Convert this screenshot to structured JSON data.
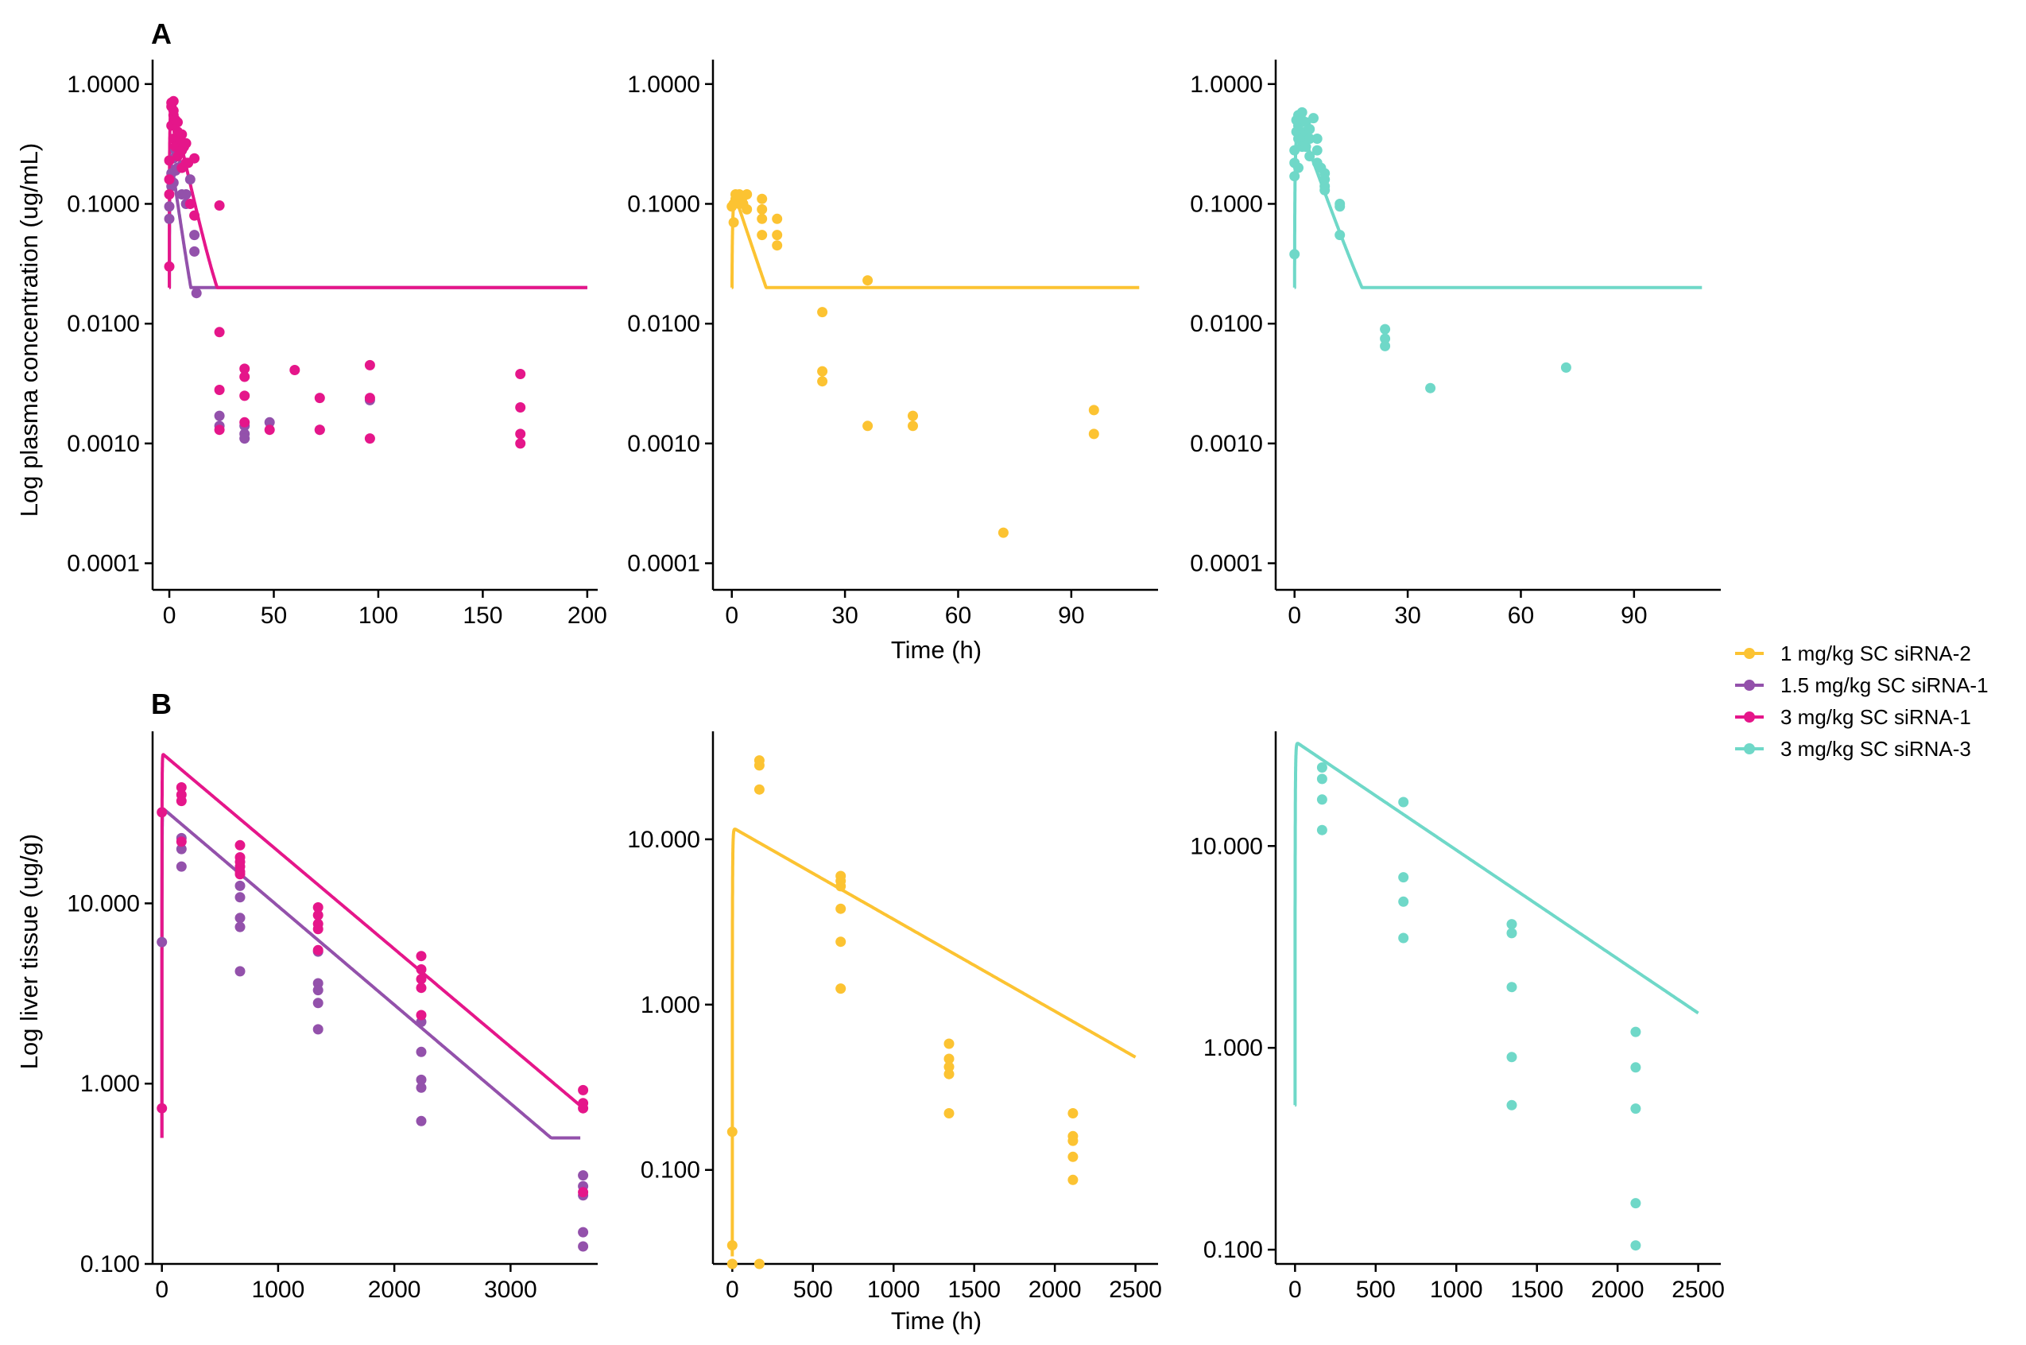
{
  "figure": {
    "legend": [
      {
        "key": "s1",
        "label": "1 mg/kg SC siRNA-2",
        "color": "#FCC332"
      },
      {
        "key": "s2",
        "label": "1.5 mg/kg SC siRNA-1",
        "color": "#9351AB"
      },
      {
        "key": "s3",
        "label": "3 mg/kg SC siRNA-1",
        "color": "#E5168A"
      },
      {
        "key": "s4",
        "label": "3 mg/kg SC siRNA-3",
        "color": "#6FD8C8"
      }
    ],
    "row_labels": [
      "A",
      "B"
    ],
    "x_titles": [
      "Time (h)",
      "Time (h)"
    ],
    "y_titles": [
      "Log plasma concentration (ug/mL)",
      "Log liver tissue (ug/g)"
    ]
  },
  "chart_data": [
    {
      "id": "A1",
      "type": "scatter+line",
      "row": "A",
      "yscale": "log",
      "xlim": [
        -8,
        205
      ],
      "ylim": [
        6e-05,
        1.6
      ],
      "xticks": [
        0,
        50,
        100,
        150,
        200
      ],
      "yticks": [
        0.0001,
        0.001,
        0.01,
        0.1,
        1
      ],
      "ytick_labels": [
        "0.0001",
        "0.0010",
        "0.0100",
        "0.1000",
        "1.0000"
      ],
      "xlabel": "",
      "ylabel": "Log plasma concentration (ug/mL)",
      "lines": [
        {
          "series": "s2",
          "model": "plasma",
          "params": {
            "tmax": 200,
            "t0": 0.02,
            "ka": 2.5,
            "A": 0.3,
            "k1": 0.28,
            "B": 0.0033,
            "k2": 0.0021,
            "tlag": 0
          }
        },
        {
          "series": "s3",
          "model": "plasma",
          "params": {
            "tmax": 200,
            "t0": 0.02,
            "ka": 2.5,
            "A": 0.85,
            "k1": 0.18,
            "B": 0.0065,
            "k2": 0.002,
            "tlag": 0
          }
        }
      ],
      "points": [
        {
          "series": "s2",
          "x": [
            0,
            0,
            1,
            1,
            2,
            2,
            3,
            3,
            4,
            4,
            6,
            6,
            8,
            8,
            10,
            12,
            12,
            13,
            24,
            24,
            36,
            36,
            36,
            48,
            72,
            96
          ],
          "y": [
            0.075,
            0.095,
            0.14,
            0.18,
            0.15,
            0.24,
            0.19,
            0.28,
            0.2,
            0.3,
            0.12,
            0.21,
            0.1,
            0.12,
            0.16,
            0.055,
            0.04,
            0.018,
            0.0017,
            0.0014,
            0.0014,
            0.0012,
            0.0011,
            0.0015,
            0.0013,
            0.0023
          ]
        },
        {
          "series": "s3",
          "x": [
            0,
            0,
            0,
            0,
            1,
            1,
            1,
            2,
            2,
            2,
            2,
            3,
            3,
            4,
            4,
            4,
            5,
            6,
            6,
            6,
            7,
            8,
            8,
            9,
            10,
            12,
            12,
            24,
            24,
            24,
            24,
            36,
            36,
            36,
            36,
            48,
            60,
            72,
            72,
            96,
            96,
            96,
            168,
            168,
            168,
            168
          ],
          "y": [
            0.03,
            0.12,
            0.16,
            0.23,
            0.45,
            0.65,
            0.7,
            0.35,
            0.55,
            0.72,
            0.6,
            0.3,
            0.5,
            0.25,
            0.4,
            0.48,
            0.35,
            0.2,
            0.28,
            0.38,
            0.3,
            0.22,
            0.32,
            0.22,
            0.1,
            0.08,
            0.24,
            0.097,
            0.0085,
            0.0028,
            0.0013,
            0.0042,
            0.0036,
            0.0025,
            0.0015,
            0.0013,
            0.0041,
            0.0024,
            0.0013,
            0.0045,
            0.0024,
            0.0011,
            0.0038,
            0.002,
            0.0012,
            0.001
          ]
        }
      ]
    },
    {
      "id": "A2",
      "type": "scatter+line",
      "row": "A",
      "yscale": "log",
      "xlim": [
        -5,
        113
      ],
      "ylim": [
        6e-05,
        1.6
      ],
      "xticks": [
        0,
        30,
        60,
        90
      ],
      "yticks": [
        0.0001,
        0.001,
        0.01,
        0.1,
        1
      ],
      "ytick_labels": [
        "0.0001",
        "0.0010",
        "0.0100",
        "0.1000",
        "1.0000"
      ],
      "xlabel": "Time (h)",
      "ylabel": "",
      "lines": [
        {
          "series": "s1",
          "model": "plasma",
          "params": {
            "tmax": 108,
            "t0": 0.02,
            "ka": 3.0,
            "A": 0.14,
            "k1": 0.22,
            "B": 0.00115,
            "k2": 0.0029,
            "tlag": 0
          }
        }
      ],
      "points": [
        {
          "series": "s1",
          "x": [
            0,
            0.5,
            0.5,
            1,
            1,
            1,
            2,
            2,
            2,
            3,
            3,
            4,
            4,
            8,
            8,
            8,
            8,
            12,
            12,
            12,
            24,
            24,
            24,
            36,
            36,
            48,
            48,
            72,
            96,
            96
          ],
          "y": [
            0.095,
            0.07,
            0.1,
            0.11,
            0.12,
            0.105,
            0.11,
            0.12,
            0.1,
            0.1,
            0.115,
            0.12,
            0.09,
            0.11,
            0.09,
            0.075,
            0.055,
            0.075,
            0.055,
            0.045,
            0.0125,
            0.004,
            0.0033,
            0.023,
            0.0014,
            0.0017,
            0.0014,
            0.00018,
            0.0019,
            0.0012
          ]
        }
      ]
    },
    {
      "id": "A3",
      "type": "scatter+line",
      "row": "A",
      "yscale": "log",
      "xlim": [
        -5,
        113
      ],
      "ylim": [
        6e-05,
        1.6
      ],
      "xticks": [
        0,
        30,
        60,
        90
      ],
      "yticks": [
        0.0001,
        0.001,
        0.01,
        0.1,
        1
      ],
      "ytick_labels": [
        "0.0001",
        "0.0010",
        "0.0100",
        "0.1000",
        "1.0000"
      ],
      "xlabel": "",
      "ylabel": "",
      "lines": [
        {
          "series": "s4",
          "model": "plasma",
          "params": {
            "tmax": 108,
            "t0": 0.02,
            "ka": 2.2,
            "A": 0.6,
            "k1": 0.2,
            "B": 0.0034,
            "k2": 0.0029,
            "tlag": 0
          }
        }
      ],
      "points": [
        {
          "series": "s4",
          "x": [
            0,
            0,
            0,
            0,
            0.5,
            0.5,
            1,
            1,
            1,
            1,
            2,
            2,
            2,
            2,
            3,
            3,
            3,
            4,
            4,
            4,
            5,
            6,
            6,
            6,
            7,
            8,
            8,
            8,
            8,
            12,
            12,
            12,
            24,
            24,
            24,
            36,
            72
          ],
          "y": [
            0.038,
            0.17,
            0.22,
            0.28,
            0.4,
            0.5,
            0.35,
            0.45,
            0.55,
            0.2,
            0.5,
            0.58,
            0.35,
            0.3,
            0.4,
            0.48,
            0.3,
            0.35,
            0.42,
            0.25,
            0.52,
            0.28,
            0.35,
            0.22,
            0.2,
            0.18,
            0.16,
            0.14,
            0.13,
            0.1,
            0.095,
            0.055,
            0.009,
            0.0075,
            0.0065,
            0.0029,
            0.0043
          ]
        }
      ]
    },
    {
      "id": "B1",
      "type": "scatter+line",
      "row": "B",
      "yscale": "log",
      "xlim": [
        -80,
        3750
      ],
      "ylim": [
        0.1,
        90
      ],
      "xticks": [
        0,
        1000,
        2000,
        3000
      ],
      "yticks": [
        0.1,
        1,
        10
      ],
      "ytick_labels": [
        "0.100",
        "1.000",
        "10.000"
      ],
      "xlabel": "",
      "ylabel": "Log liver tissue (ug/g)",
      "lines": [
        {
          "series": "s2",
          "model": "liver",
          "params": {
            "tmax": 3600,
            "t0": 0,
            "ka": 0.5,
            "A": 34,
            "k1": 0.00126,
            "B": 0,
            "k2": 0,
            "tlag": 0,
            "c0": 0.5
          }
        },
        {
          "series": "s3",
          "model": "liver",
          "params": {
            "tmax": 3600,
            "t0": 0,
            "ka": 0.5,
            "A": 68,
            "k1": 0.00125,
            "B": 0,
            "k2": 0,
            "tlag": 0,
            "c0": 0.5
          }
        }
      ],
      "points": [
        {
          "series": "s2",
          "x": [
            0,
            168,
            168,
            168,
            672,
            672,
            672,
            672,
            672,
            1344,
            1344,
            1344,
            1344,
            1344,
            2232,
            2232,
            2232,
            2232,
            2232,
            3624,
            3624,
            3624,
            3624,
            3624
          ],
          "y": [
            6.1,
            23,
            20,
            16,
            12.5,
            10.8,
            8.3,
            7.4,
            4.2,
            5.4,
            3.6,
            3.3,
            2.8,
            2,
            2.2,
            1.5,
            1.05,
            0.95,
            0.62,
            0.31,
            0.27,
            0.24,
            0.15,
            0.125
          ]
        },
        {
          "series": "s3",
          "x": [
            0,
            0,
            168,
            168,
            168,
            168,
            672,
            672,
            672,
            672,
            672,
            672,
            1344,
            1344,
            1344,
            1344,
            1344,
            2232,
            2232,
            2232,
            2232,
            2232,
            3624,
            3624,
            3624,
            3624
          ],
          "y": [
            0.73,
            32,
            44,
            40,
            37,
            22,
            21,
            18,
            17,
            16,
            14.5,
            15,
            9.5,
            8.6,
            7.7,
            7.2,
            5.5,
            5.1,
            4.3,
            3.8,
            3.4,
            2.4,
            0.92,
            0.78,
            0.73,
            0.25
          ]
        }
      ]
    },
    {
      "id": "B2",
      "type": "scatter+line",
      "row": "B",
      "yscale": "log",
      "xlim": [
        -120,
        2640
      ],
      "ylim": [
        0.027,
        45
      ],
      "xticks": [
        0,
        500,
        1000,
        1500,
        2000,
        2500
      ],
      "yticks": [
        0.1,
        1,
        10
      ],
      "ytick_labels": [
        "0.100",
        "1.000",
        "10.000"
      ],
      "xlabel": "Time (h)",
      "ylabel": "",
      "lines": [
        {
          "series": "s1",
          "model": "liver",
          "params": {
            "tmax": 2500,
            "t0": 0,
            "ka": 0.35,
            "A": 11.8,
            "k1": 0.00128,
            "B": 0,
            "k2": 0,
            "tlag": 0,
            "c0": 0.03
          }
        }
      ],
      "points": [
        {
          "series": "s1",
          "x": [
            0,
            0,
            0,
            168,
            168,
            168,
            168,
            672,
            672,
            672,
            672,
            672,
            672,
            1344,
            1344,
            1344,
            1344,
            1344,
            2112,
            2112,
            2112,
            2112,
            2112
          ],
          "y": [
            0.17,
            0.035,
            0.027,
            30,
            28,
            20,
            0.027,
            6,
            5.6,
            5.2,
            3.8,
            2.4,
            1.25,
            0.58,
            0.47,
            0.42,
            0.38,
            0.22,
            0.22,
            0.16,
            0.15,
            0.12,
            0.087
          ]
        }
      ]
    },
    {
      "id": "B3",
      "type": "scatter+line",
      "row": "B",
      "yscale": "log",
      "xlim": [
        -120,
        2640
      ],
      "ylim": [
        0.085,
        37
      ],
      "xticks": [
        0,
        500,
        1000,
        1500,
        2000,
        2500
      ],
      "yticks": [
        0.1,
        1,
        10
      ],
      "ytick_labels": [
        "0.100",
        "1.000",
        "10.000"
      ],
      "xlabel": "",
      "ylabel": "",
      "lines": [
        {
          "series": "s4",
          "model": "liver",
          "params": {
            "tmax": 2500,
            "t0": 0,
            "ka": 0.35,
            "A": 33,
            "k1": 0.00124,
            "B": 0,
            "k2": 0,
            "tlag": 0,
            "c0": 0.52
          }
        }
      ],
      "points": [
        {
          "series": "s4",
          "x": [
            168,
            168,
            168,
            168,
            672,
            672,
            672,
            672,
            1344,
            1344,
            1344,
            1344,
            1344,
            2112,
            2112,
            2112,
            2112,
            2112
          ],
          "y": [
            24.5,
            21.5,
            17,
            12,
            16.5,
            7,
            5.3,
            3.5,
            4.1,
            3.7,
            2,
            0.9,
            0.52,
            1.2,
            0.8,
            0.5,
            0.17,
            0.105
          ]
        }
      ]
    }
  ]
}
